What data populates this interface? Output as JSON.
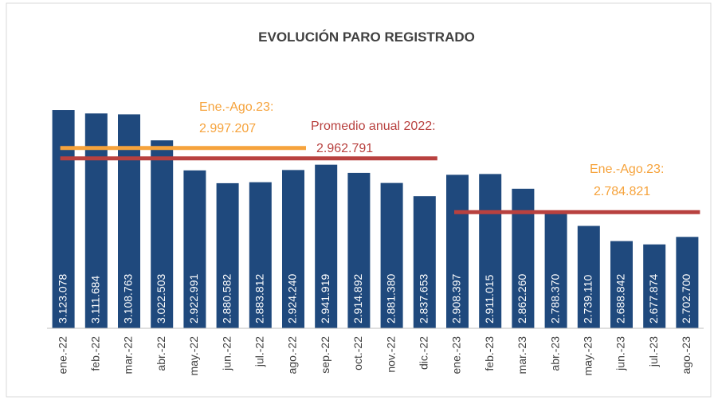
{
  "chart_data": {
    "type": "bar",
    "title": "EVOLUCIÓN PARO REGISTRADO",
    "categories": [
      "ene.-22",
      "feb.-22",
      "mar.-22",
      "abr.-22",
      "may.-22",
      "jun.-22",
      "jul.-22",
      "ago.-22",
      "sep.-22",
      "oct.-22",
      "nov.-22",
      "dic.-22",
      "ene.-23",
      "feb.-23",
      "mar.-23",
      "abr.-23",
      "may.-23",
      "jun.-23",
      "jul.-23",
      "ago.-23"
    ],
    "values": [
      3123078,
      3111684,
      3108763,
      3022503,
      2922991,
      2880582,
      2883812,
      2924240,
      2941919,
      2914892,
      2881380,
      2837653,
      2908397,
      2911015,
      2862260,
      2788370,
      2739110,
      2688842,
      2677874,
      2702700
    ],
    "value_labels": [
      "3.123.078",
      "3.111.684",
      "3.108.763",
      "3.022.503",
      "2.922.991",
      "2.880.582",
      "2.883.812",
      "2.924.240",
      "2.941.919",
      "2.914.892",
      "2.881.380",
      "2.837.653",
      "2.908.397",
      "2.911.015",
      "2.862.260",
      "2.788.370",
      "2.739.110",
      "2.688.842",
      "2.677.874",
      "2.702.700"
    ],
    "color": "#1f497d",
    "ylim": [
      2400000,
      3300000
    ],
    "reference_lines": [
      {
        "label": "Ene.-Ago.23:",
        "value": 2997207,
        "value_label": "2.997.207",
        "start": "ene.-22",
        "end": "ago.-22",
        "color": "#f6a33c"
      },
      {
        "label": "Promedio anual 2022:",
        "value": 2962791,
        "value_label": "2.962.791",
        "start": "ene.-22",
        "end": "dic.-22",
        "color": "#b8413f"
      },
      {
        "label": "Ene.-Ago.23:",
        "value": 2784821,
        "value_label": "2.784.821",
        "start": "ene.-23",
        "end": "ago.-23",
        "color": "#b8413f"
      }
    ]
  }
}
